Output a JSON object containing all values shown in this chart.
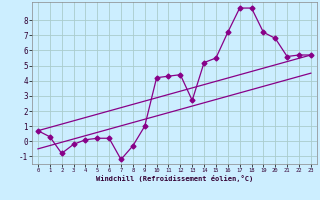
{
  "xlabel": "Windchill (Refroidissement éolien,°C)",
  "background_color": "#cceeff",
  "grid_color": "#aacccc",
  "line_color": "#880088",
  "xlim": [
    -0.5,
    23.5
  ],
  "ylim": [
    -1.5,
    9.2
  ],
  "yticks": [
    -1,
    0,
    1,
    2,
    3,
    4,
    5,
    6,
    7,
    8
  ],
  "xticks": [
    0,
    1,
    2,
    3,
    4,
    5,
    6,
    7,
    8,
    9,
    10,
    11,
    12,
    13,
    14,
    15,
    16,
    17,
    18,
    19,
    20,
    21,
    22,
    23
  ],
  "series1_x": [
    0,
    1,
    2,
    3,
    4,
    5,
    6,
    7,
    8,
    9,
    10,
    11,
    12,
    13,
    14,
    15,
    16,
    17,
    18,
    19,
    20,
    21,
    22,
    23
  ],
  "series1_y": [
    0.7,
    0.3,
    -0.8,
    -0.2,
    0.1,
    0.2,
    0.2,
    -1.2,
    -0.3,
    1.0,
    4.2,
    4.3,
    4.4,
    2.7,
    5.2,
    5.5,
    7.2,
    8.8,
    8.8,
    7.2,
    6.8,
    5.6,
    5.7,
    5.7
  ],
  "series2_x": [
    0,
    23
  ],
  "series2_y": [
    0.7,
    5.7
  ],
  "series3_x": [
    0,
    23
  ],
  "series3_y": [
    -0.5,
    4.5
  ],
  "marker": "D",
  "markersize": 2.5,
  "linewidth": 0.9
}
